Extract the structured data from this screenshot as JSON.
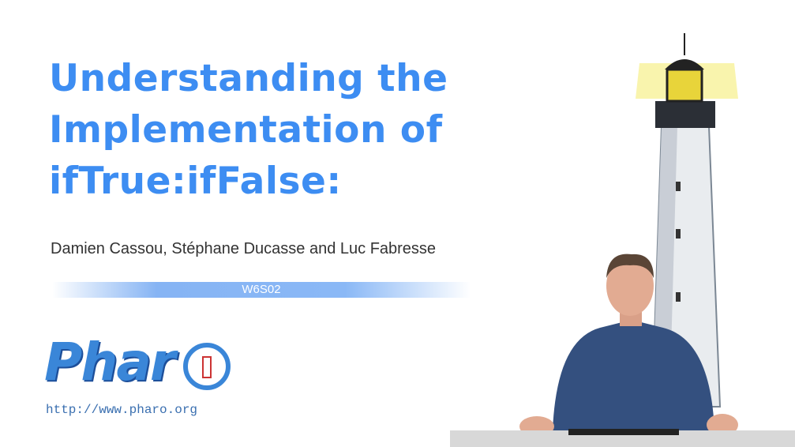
{
  "slide": {
    "title_lines": [
      "Understanding the",
      "Implementation of",
      "ifTrue:ifFalse:"
    ],
    "authors": "Damien Cassou, Stéphane Ducasse and Luc Fabresse",
    "session": "W6S02",
    "logo": "Phar",
    "url": "http://www.pharo.org"
  }
}
